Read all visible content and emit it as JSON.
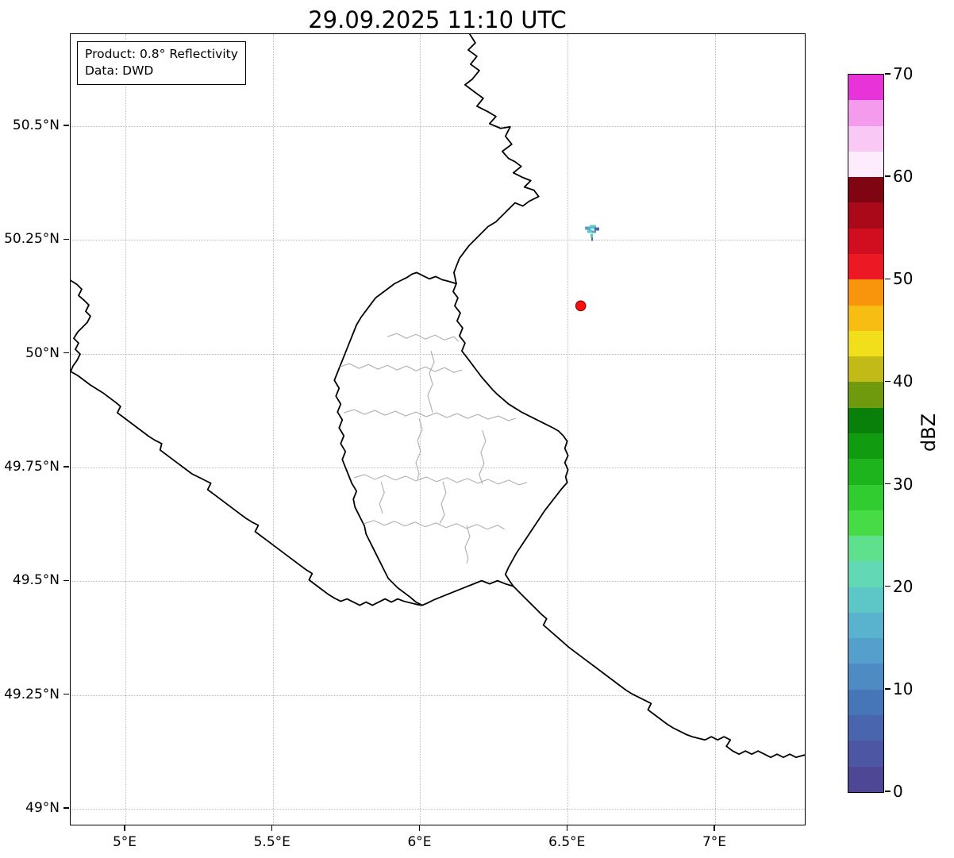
{
  "title": "29.09.2025 11:10 UTC",
  "info_box": {
    "product": "Product: 0.8° Reflectivity",
    "data_source": "Data: DWD"
  },
  "map": {
    "x_axis": {
      "range": [
        4.8143,
        7.3096
      ],
      "ticks": [
        {
          "value": 5.0,
          "label": "5°E"
        },
        {
          "value": 5.5,
          "label": "5.5°E"
        },
        {
          "value": 6.0,
          "label": "6°E"
        },
        {
          "value": 6.5,
          "label": "6.5°E"
        },
        {
          "value": 7.0,
          "label": "7°E"
        }
      ]
    },
    "y_axis": {
      "range": [
        48.9616,
        50.7023
      ],
      "ticks": [
        {
          "value": 50.5,
          "label": "50.5°N"
        },
        {
          "value": 50.25,
          "label": "50.25°N"
        },
        {
          "value": 50.0,
          "label": "50°N"
        },
        {
          "value": 49.75,
          "label": "49.75°N"
        },
        {
          "value": 49.5,
          "label": "49.5°N"
        },
        {
          "value": 49.25,
          "label": "49.25°N"
        },
        {
          "value": 49.0,
          "label": "49°N"
        }
      ]
    },
    "markers": [
      {
        "name": "radar-site-marker",
        "lon": 6.548,
        "lat": 50.104,
        "color": "#ff0f0f",
        "edge_color": "#8c0000"
      }
    ],
    "echo_cells": [
      {
        "lon": 6.584,
        "lat": 50.268,
        "approx_dbz_range": [
          5,
          20
        ],
        "colors": [
          "#55a0cc",
          "#5dc7c7",
          "#4a66af"
        ]
      }
    ]
  },
  "colorbar": {
    "label": "dBZ",
    "min": 0,
    "max": 70,
    "tick_values": [
      0,
      10,
      20,
      30,
      40,
      50,
      60,
      70
    ],
    "band_step_dbz": 2.5,
    "band_colors_bottom_to_top": [
      "#4e4796",
      "#4c56a3",
      "#4965ae",
      "#4776b8",
      "#4d8bc2",
      "#549fcb",
      "#5ab3ce",
      "#5dc7c7",
      "#62d8b5",
      "#5fe08c",
      "#47dc47",
      "#30cc30",
      "#1db41d",
      "#109b10",
      "#098009",
      "#6f9a0e",
      "#c2bb17",
      "#f0df1a",
      "#f8bd12",
      "#f9940d",
      "#ec1823",
      "#d10e1f",
      "#aa091a",
      "#800513",
      "#fdecfc",
      "#fac8f5",
      "#f49bee",
      "#e733d8"
    ]
  }
}
